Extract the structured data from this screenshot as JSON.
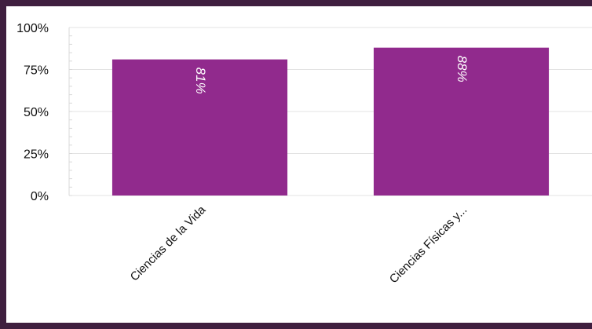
{
  "chart_data": {
    "type": "bar",
    "categories": [
      "Ciencias de la Vida",
      "Ciencias Físicas y..."
    ],
    "values": [
      81,
      88
    ],
    "data_labels": [
      "81%",
      "88%"
    ],
    "title": "",
    "xlabel": "",
    "ylabel": "",
    "ylim": [
      0,
      100
    ],
    "yticks": [
      "0%",
      "25%",
      "50%",
      "75%",
      "100%"
    ],
    "grid": true,
    "legend": "none",
    "colors": {
      "bar": "#912a8d",
      "grid": "#e3e3e3",
      "frame": "#3f1f3f"
    }
  }
}
